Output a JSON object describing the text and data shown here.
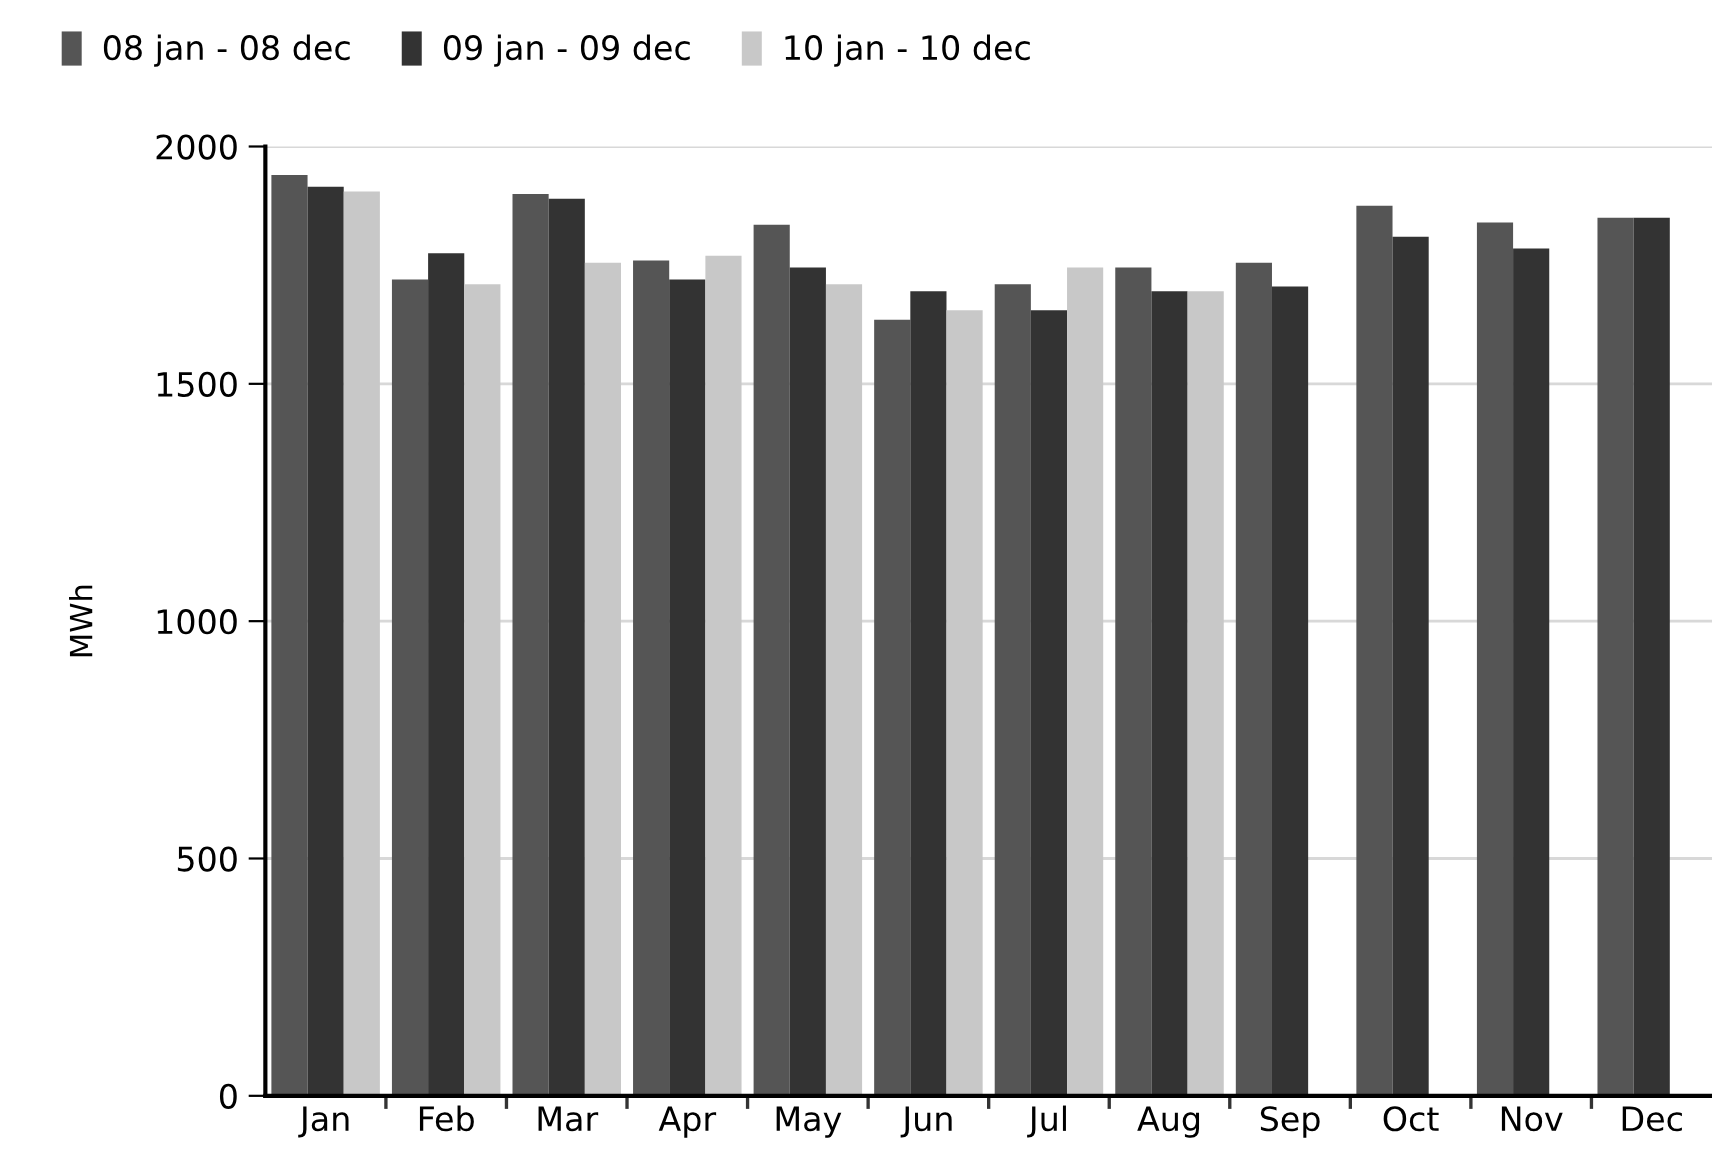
{
  "chart_data": {
    "type": "bar",
    "ylabel": "MWh",
    "categories": [
      "Jan",
      "Feb",
      "Mar",
      "Apr",
      "May",
      "Jun",
      "Jul",
      "Aug",
      "Sep",
      "Oct",
      "Nov",
      "Dec"
    ],
    "series": [
      {
        "name": "08 jan - 08 dec",
        "color": "#555555",
        "values": [
          1940,
          1720,
          1900,
          1760,
          1835,
          1635,
          1710,
          1745,
          1755,
          1875,
          1840,
          1850
        ]
      },
      {
        "name": "09 jan - 09 dec",
        "color": "#333333",
        "values": [
          1915,
          1775,
          1890,
          1720,
          1745,
          1695,
          1655,
          1695,
          1705,
          1810,
          1785,
          1850
        ]
      },
      {
        "name": "10 jan - 10 dec",
        "color": "#c8c8c8",
        "values": [
          1905,
          1710,
          1755,
          1770,
          1710,
          1655,
          1745,
          1695,
          null,
          null,
          null,
          null
        ]
      }
    ],
    "ylim": [
      0,
      2000
    ],
    "yticks": [
      0,
      500,
      1000,
      1500,
      2000
    ],
    "grid": "y",
    "legend": "top left"
  }
}
